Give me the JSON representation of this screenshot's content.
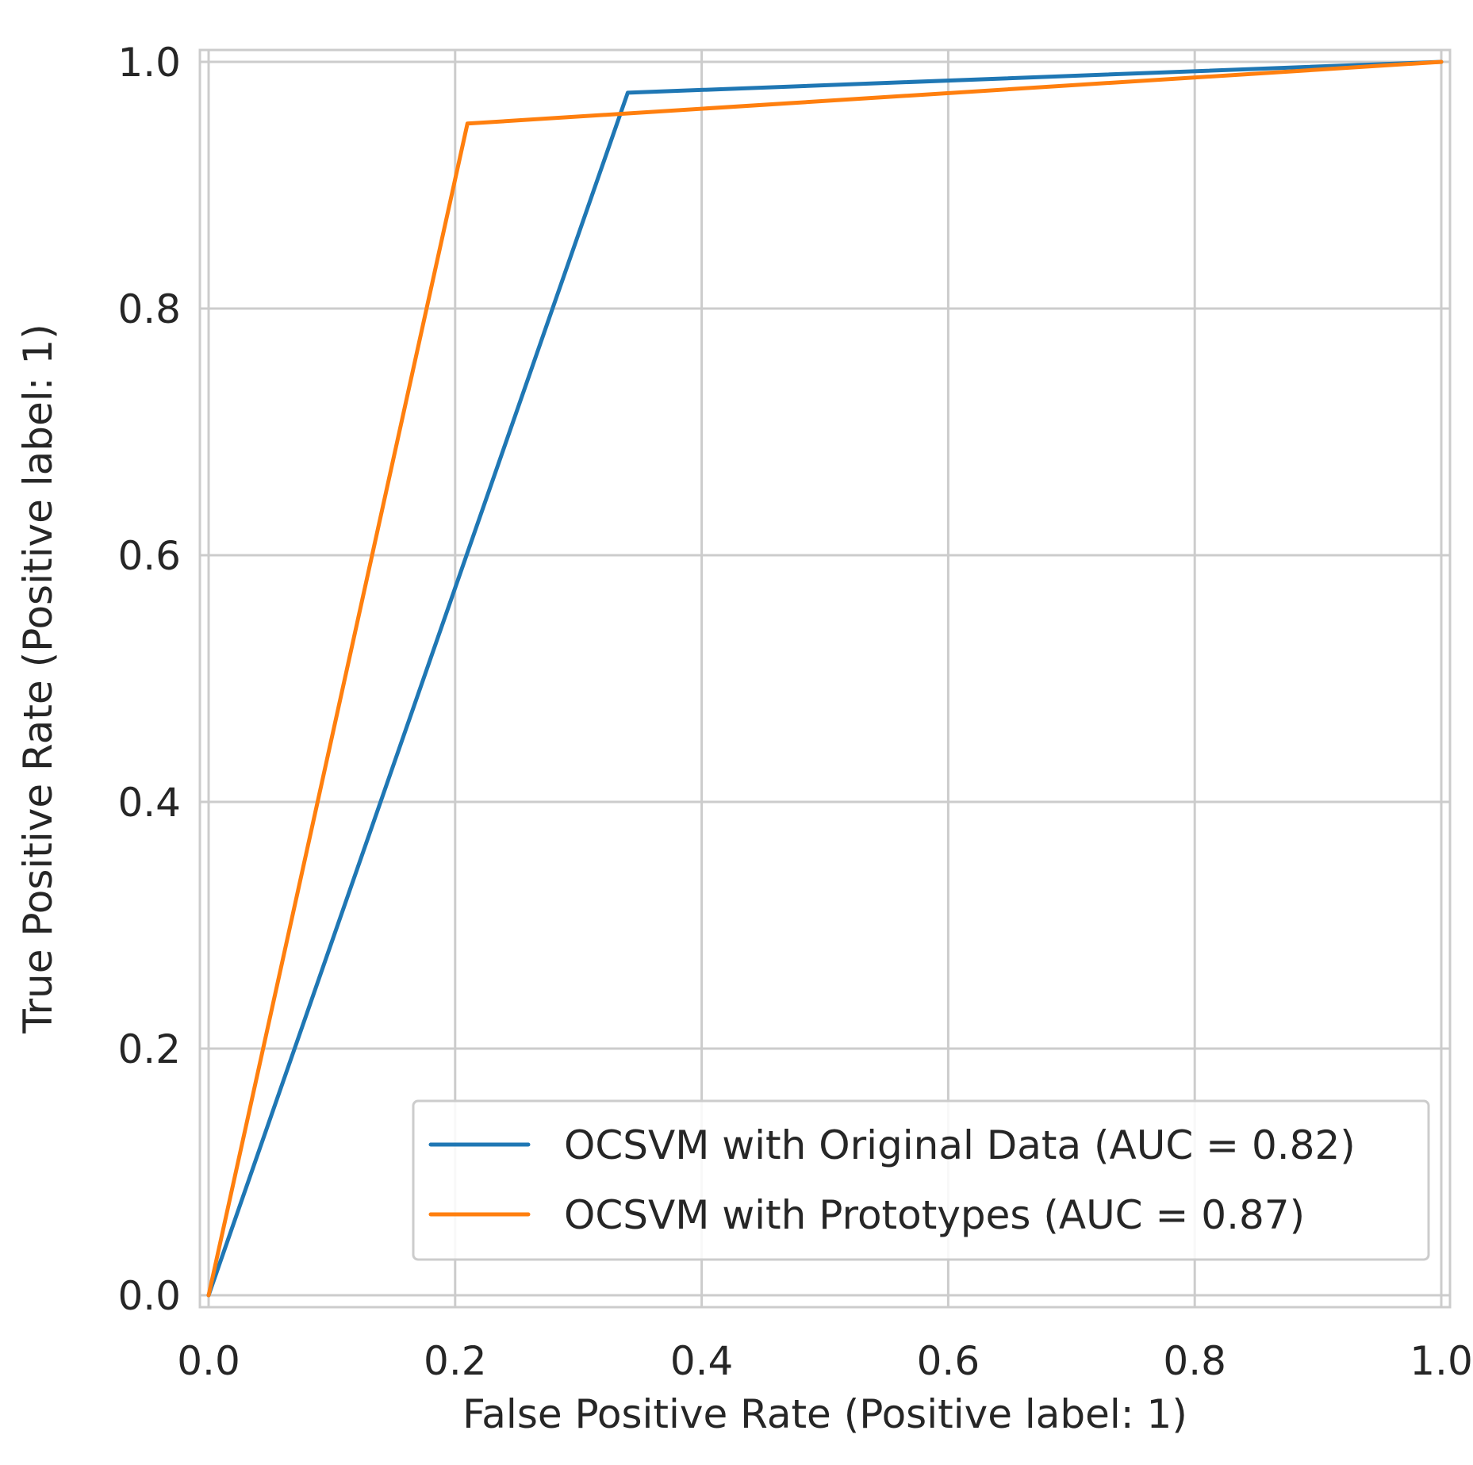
{
  "chart_data": {
    "type": "line",
    "title": "",
    "xlabel": "False Positive Rate (Positive label: 1)",
    "ylabel": "True Positive Rate (Positive label: 1)",
    "xlim": [
      0.0,
      1.0
    ],
    "ylim": [
      0.0,
      1.0
    ],
    "grid": true,
    "x_ticks": [
      0.0,
      0.2,
      0.4,
      0.6,
      0.8,
      1.0
    ],
    "x_tick_labels": [
      "0.0",
      "0.2",
      "0.4",
      "0.6",
      "0.8",
      "1.0"
    ],
    "y_ticks": [
      0.0,
      0.2,
      0.4,
      0.6,
      0.8,
      1.0
    ],
    "y_tick_labels": [
      "0.0",
      "0.2",
      "0.4",
      "0.6",
      "0.8",
      "1.0"
    ],
    "legend_position": "lower-right",
    "series": [
      {
        "name": "OCSVM with Original Data (AUC = 0.82)",
        "color": "#1f77b4",
        "x": [
          0.0,
          0.34,
          1.0
        ],
        "y": [
          0.0,
          0.975,
          1.0
        ]
      },
      {
        "name": "OCSVM with Prototypes (AUC = 0.87)",
        "color": "#ff7f0e",
        "x": [
          0.0,
          0.21,
          1.0
        ],
        "y": [
          0.0,
          0.95,
          1.0
        ]
      }
    ]
  }
}
